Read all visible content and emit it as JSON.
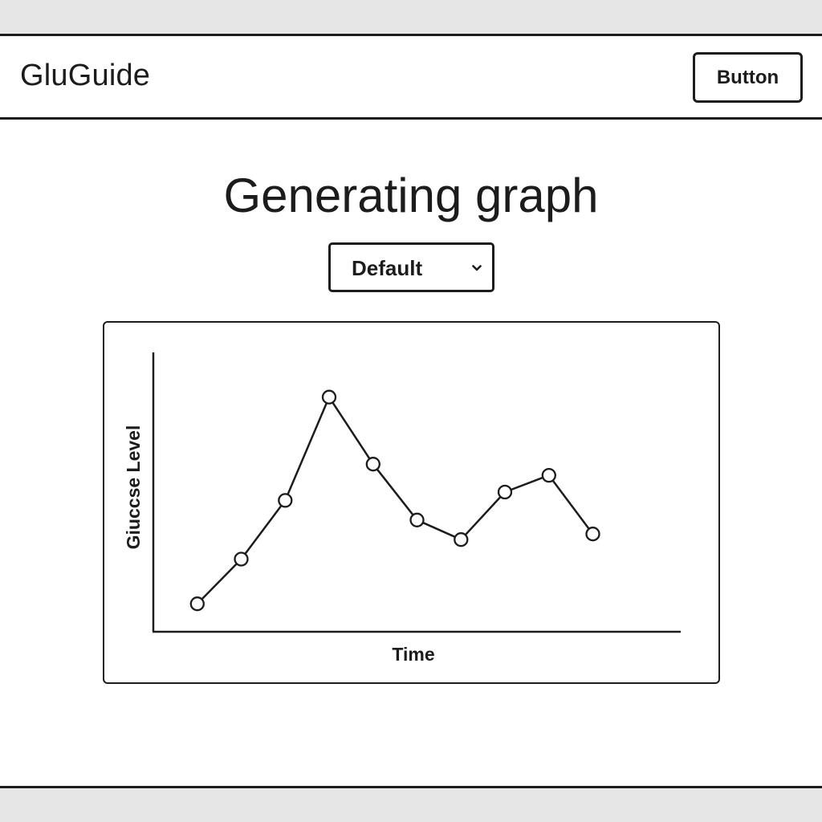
{
  "header": {
    "brand": "GluGuide",
    "button_label": "Button"
  },
  "main": {
    "title": "Generating graph",
    "select": {
      "value": "Default"
    }
  },
  "icons": {
    "select_chevron": "chevron-down-icon"
  },
  "chart_data": {
    "type": "line",
    "title": "",
    "xlabel": "Time",
    "ylabel": "Giuccse Level",
    "series": [
      {
        "values": [
          {
            "x": 1,
            "y": 10
          },
          {
            "x": 2,
            "y": 26
          },
          {
            "x": 3,
            "y": 47
          },
          {
            "x": 4,
            "y": 84
          },
          {
            "x": 5,
            "y": 60
          },
          {
            "x": 6,
            "y": 40
          },
          {
            "x": 7,
            "y": 33
          },
          {
            "x": 8,
            "y": 50
          },
          {
            "x": 9,
            "y": 56
          },
          {
            "x": 10,
            "y": 35
          }
        ]
      }
    ],
    "xlim": [
      0,
      12
    ],
    "ylim": [
      0,
      100
    ],
    "grid": false,
    "legend": "none",
    "colors": {
      "line": "#1c1c1c",
      "marker_fill": "#ffffff"
    }
  }
}
